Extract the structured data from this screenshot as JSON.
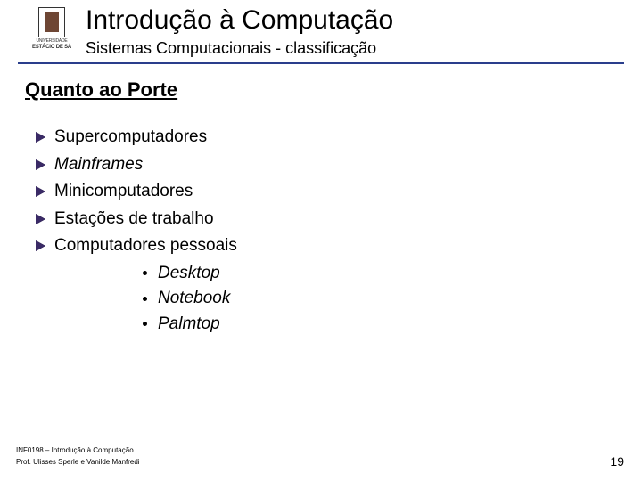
{
  "header": {
    "title": "Introdução à Computação",
    "subtitle": "Sistemas Computacionais - classificação",
    "logo": {
      "line1": "UNIVERSIDADE",
      "line2": "ESTÁCIO DE SÁ"
    },
    "rule_color": "#2a3e8c"
  },
  "section": {
    "heading": "Quanto ao Porte"
  },
  "bullets": {
    "wedge_color": "#3a2a66",
    "items": [
      {
        "text": "Supercomputadores",
        "italic": false
      },
      {
        "text": "Mainframes",
        "italic": true
      },
      {
        "text": "Minicomputadores",
        "italic": false
      },
      {
        "text": "Estações de trabalho",
        "italic": false
      },
      {
        "text": "Computadores pessoais",
        "italic": false
      }
    ],
    "subitems": [
      {
        "text": "Desktop",
        "italic": true
      },
      {
        "text": "Notebook",
        "italic": true
      },
      {
        "text": "Palmtop",
        "italic": true
      }
    ]
  },
  "footer": {
    "course": "INF0198 – Introdução à Computação",
    "authors": "Prof. Ulisses Sperle e Vanilde Manfredi",
    "page": "19"
  },
  "colors": {
    "background": "#ffffff",
    "text": "#000000"
  }
}
